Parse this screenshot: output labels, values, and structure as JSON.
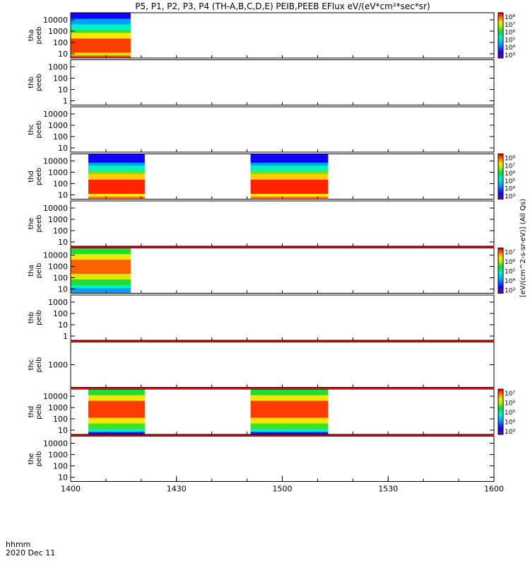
{
  "chart_data": {
    "type": "heatmap",
    "title": "P5, P1, P2, P3, P4 (TH-A,B,C,D,E) PEIB,PEEB EFlux eV/(eV*cm²*sec*sr)",
    "time_label": "hhmm",
    "date_label": "2020 Dec 11",
    "x_ticks": [
      "1400",
      "1430",
      "1500",
      "1530",
      "1600"
    ],
    "x_range_minutes": [
      0,
      120
    ],
    "colorbar_label": "[eV/(cm^2-s-sr-eV)] (All Qs)",
    "panels": [
      {
        "probe": "tha",
        "species": "peeb",
        "yticks": [
          "10000",
          "1000",
          "100",
          "10"
        ],
        "colorbar": [
          "10⁸",
          "10⁷",
          "10⁶",
          "10⁵",
          "10⁴",
          "10³"
        ],
        "data_intervals": [
          [
            0,
            17
          ]
        ],
        "profile": "electron_a"
      },
      {
        "probe": "thb",
        "species": "peeb",
        "yticks": [
          "1000",
          "100",
          "10",
          "1"
        ],
        "colorbar": null,
        "data_intervals": [],
        "profile": "none"
      },
      {
        "probe": "thc",
        "species": "peeb",
        "yticks": [
          "10000",
          "1000",
          "100",
          "10"
        ],
        "colorbar": null,
        "data_intervals": [],
        "profile": "none"
      },
      {
        "probe": "thd",
        "species": "peeb",
        "yticks": [
          "10000",
          "1000",
          "100",
          "10"
        ],
        "colorbar": [
          "10⁸",
          "10⁷",
          "10⁶",
          "10⁵",
          "10⁴",
          "10³"
        ],
        "data_intervals": [
          [
            5,
            21
          ],
          [
            51,
            73
          ]
        ],
        "profile": "electron_d"
      },
      {
        "probe": "the",
        "species": "peeb",
        "yticks": [
          "10000",
          "1000",
          "100",
          "10"
        ],
        "colorbar": null,
        "data_intervals": [],
        "profile": "none"
      },
      {
        "probe": "tha",
        "species": "peib",
        "yticks": [
          "10000",
          "1000",
          "100",
          "10"
        ],
        "colorbar": [
          "10⁷",
          "10⁶",
          "10⁵",
          "10⁴",
          "10³"
        ],
        "data_intervals": [
          [
            0,
            17
          ]
        ],
        "profile": "ion_a"
      },
      {
        "probe": "thb",
        "species": "peib",
        "yticks": [
          "1000",
          "100",
          "10",
          "1"
        ],
        "colorbar": null,
        "data_intervals": [],
        "profile": "none"
      },
      {
        "probe": "thc",
        "species": "peib",
        "yticks": [
          "1000"
        ],
        "colorbar": null,
        "data_intervals": [],
        "profile": "none"
      },
      {
        "probe": "thd",
        "species": "peib",
        "yticks": [
          "10000",
          "1000",
          "100",
          "10"
        ],
        "colorbar": [
          "10⁷",
          "10⁶",
          "10⁵",
          "10⁴",
          "10³"
        ],
        "data_intervals": [
          [
            5,
            21
          ],
          [
            51,
            73
          ]
        ],
        "profile": "ion_d"
      },
      {
        "probe": "the",
        "species": "peib",
        "yticks": [
          "10000",
          "1000",
          "100",
          "10"
        ],
        "colorbar": null,
        "data_intervals": [],
        "profile": "none"
      }
    ],
    "colors": {
      "max": "#ff0000",
      "min": "#8800cc"
    }
  }
}
